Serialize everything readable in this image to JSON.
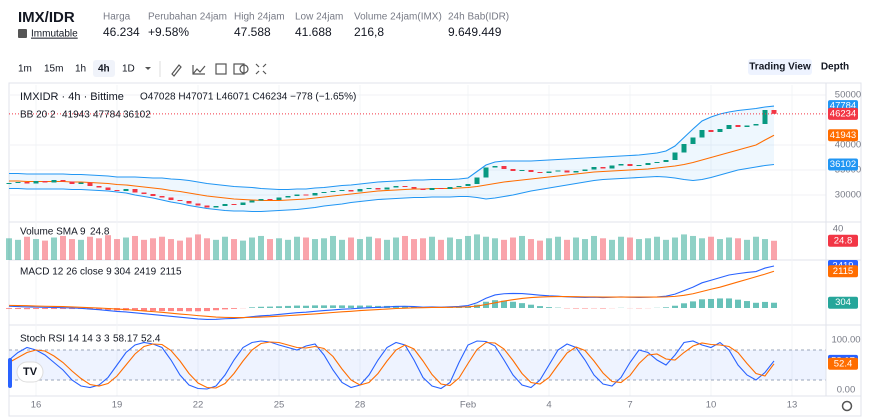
{
  "header": {
    "pair": "IMX/IDR",
    "name": "Immutable",
    "stats": [
      {
        "label": "Harga",
        "value": "46.234"
      },
      {
        "label": "Perubahan 24jam",
        "value": "+9.58%"
      },
      {
        "label": "High 24jam",
        "value": "47.588"
      },
      {
        "label": "Low 24jam",
        "value": "41.688"
      },
      {
        "label": "Volume 24jam(IMX)",
        "value": "216,8"
      },
      {
        "label": "24h Bab(IDR)",
        "value": "9.649.449"
      }
    ]
  },
  "toolbar": {
    "intervals": [
      "1m",
      "15m",
      "1h",
      "4h",
      "1D"
    ],
    "active": "4h",
    "views": [
      "Trading View",
      "Depth"
    ]
  },
  "chart_data": {
    "type": "candlestick",
    "legend": {
      "symbol": "IMXIDR · 4h · Bittime",
      "ohlc": "O47028 H47071 L46071 C46234 −778 (−1.65%)",
      "bb": "BB 20 2",
      "volume": "Volume SMA 9",
      "macd": "MACD 12 26 close 9",
      "rsi": "Stoch RSI 14 14 3 3"
    },
    "up_color": "#089981",
    "down_color": "#f23645",
    "xticks": [
      {
        "value": 3,
        "label": "16"
      },
      {
        "value": 12,
        "label": "19"
      },
      {
        "value": 21,
        "label": "22"
      },
      {
        "value": 30,
        "label": "25"
      },
      {
        "value": 39,
        "label": "28"
      },
      {
        "value": 51,
        "label": "Feb"
      },
      {
        "value": 60,
        "label": "4"
      },
      {
        "value": 69,
        "label": "7"
      },
      {
        "value": 78,
        "label": "10"
      },
      {
        "value": 87,
        "label": "13"
      }
    ],
    "ylim": [
      24600,
      52000
    ],
    "yticks": [
      30000,
      35000,
      40000,
      50000
    ],
    "close": [
      32400,
      32600,
      32300,
      32800,
      32500,
      33000,
      32700,
      32200,
      32500,
      31800,
      31500,
      31000,
      30800,
      31200,
      30500,
      30200,
      29800,
      29500,
      29000,
      28800,
      28300,
      27900,
      27500,
      27800,
      28200,
      28000,
      28500,
      28900,
      29200,
      29000,
      29500,
      29800,
      30100,
      29900,
      30400,
      30600,
      30800,
      31000,
      30700,
      31200,
      31400,
      31100,
      31500,
      31800,
      31600,
      31300,
      31000,
      31400,
      31200,
      31600,
      31800,
      32200,
      33500,
      35500,
      35800,
      35200,
      34800,
      35000,
      34600,
      34400,
      34700,
      34900,
      34500,
      34800,
      35100,
      35600,
      35300,
      35900,
      36200,
      35800,
      36000,
      36400,
      36600,
      37000,
      38500,
      40200,
      41500,
      43000,
      42600,
      43200,
      44000,
      43600,
      43900,
      44200,
      47000,
      46234
    ],
    "bb_mid": [
      32800,
      32800,
      32700,
      32700,
      32700,
      32700,
      32700,
      32600,
      32600,
      32500,
      32400,
      32300,
      32100,
      32000,
      31800,
      31600,
      31400,
      31200,
      30900,
      30700,
      30400,
      30100,
      29800,
      29600,
      29400,
      29200,
      29100,
      29000,
      28900,
      28900,
      28900,
      29000,
      29100,
      29200,
      29400,
      29600,
      29800,
      30000,
      30200,
      30400,
      30600,
      30800,
      30900,
      31000,
      31100,
      31200,
      31200,
      31300,
      31300,
      31300,
      31400,
      31500,
      31700,
      32000,
      32300,
      32600,
      32800,
      33000,
      33200,
      33400,
      33600,
      33800,
      34000,
      34200,
      34400,
      34600,
      34700,
      34800,
      34900,
      35000,
      35100,
      35200,
      35400,
      35600,
      35800,
      36100,
      36500,
      37000,
      37500,
      38000,
      38500,
      39000,
      39500,
      40000,
      41000,
      41943
    ],
    "bb_upper": [
      34300,
      34300,
      34200,
      34200,
      34200,
      34200,
      34200,
      34100,
      34100,
      34000,
      33900,
      33800,
      33600,
      33600,
      33600,
      33500,
      33400,
      33400,
      33200,
      33100,
      32900,
      32600,
      32300,
      32100,
      31900,
      31700,
      31600,
      31500,
      31300,
      31200,
      31100,
      31100,
      31200,
      31200,
      31400,
      31500,
      31700,
      31900,
      32000,
      32200,
      32400,
      32600,
      32700,
      32800,
      32900,
      33000,
      33000,
      33100,
      33100,
      33100,
      33200,
      33400,
      34700,
      36000,
      36600,
      36800,
      36800,
      36800,
      36800,
      36900,
      37000,
      37100,
      37200,
      37300,
      37400,
      37500,
      37600,
      37700,
      37800,
      37900,
      38000,
      38200,
      38400,
      38800,
      39800,
      41500,
      43200,
      44800,
      45600,
      46200,
      46600,
      46900,
      47100,
      47300,
      47600,
      47784
    ],
    "bb_lower": [
      31300,
      31300,
      31200,
      31200,
      31200,
      31200,
      31200,
      31100,
      31100,
      31000,
      30900,
      30800,
      30600,
      30400,
      30000,
      29700,
      29400,
      29000,
      28600,
      28300,
      27900,
      27600,
      27300,
      27100,
      26900,
      26800,
      26800,
      26700,
      26700,
      26800,
      26900,
      27000,
      27100,
      27300,
      27500,
      27800,
      28000,
      28200,
      28500,
      28700,
      28900,
      29100,
      29200,
      29300,
      29400,
      29500,
      29500,
      29600,
      29600,
      29600,
      29700,
      29700,
      29500,
      29200,
      29400,
      29700,
      30000,
      30400,
      30800,
      31100,
      31400,
      31700,
      32000,
      32300,
      32600,
      32900,
      33100,
      33200,
      33300,
      33400,
      33500,
      33600,
      33700,
      33600,
      33400,
      33100,
      32900,
      33100,
      33500,
      34000,
      34500,
      35000,
      35300,
      35600,
      35900,
      36102
    ],
    "vol_ylim": [
      0,
      49
    ],
    "vol_yticks": [
      40
    ],
    "volume": [
      28,
      26,
      30,
      27,
      25,
      29,
      31,
      27,
      26,
      30,
      28,
      32,
      27,
      29,
      31,
      26,
      28,
      30,
      27,
      25,
      29,
      33,
      28,
      26,
      30,
      27,
      25,
      29,
      31,
      27,
      28,
      26,
      30,
      29,
      27,
      28,
      31,
      26,
      29,
      27,
      30,
      28,
      26,
      29,
      31,
      27,
      28,
      30,
      26,
      29,
      27,
      31,
      33,
      30,
      28,
      26,
      29,
      31,
      27,
      25,
      28,
      30,
      26,
      29,
      27,
      31,
      28,
      26,
      30,
      29,
      27,
      28,
      30,
      26,
      29,
      33,
      31,
      28,
      30,
      27,
      29,
      28,
      26,
      30,
      27,
      24.8
    ],
    "macd_ylim": [
      -980,
      2765
    ],
    "macd": [
      100,
      80,
      60,
      50,
      40,
      30,
      20,
      0,
      -20,
      -60,
      -100,
      -150,
      -200,
      -230,
      -280,
      -330,
      -380,
      -430,
      -480,
      -530,
      -580,
      -630,
      -660,
      -650,
      -620,
      -600,
      -560,
      -500,
      -450,
      -420,
      -370,
      -320,
      -270,
      -240,
      -190,
      -150,
      -110,
      -70,
      -50,
      -10,
      20,
      30,
      60,
      90,
      100,
      80,
      50,
      60,
      50,
      70,
      90,
      140,
      300,
      560,
      750,
      820,
      840,
      830,
      790,
      740,
      700,
      680,
      640,
      620,
      610,
      620,
      600,
      620,
      640,
      620,
      610,
      620,
      640,
      680,
      800,
      1000,
      1200,
      1450,
      1600,
      1750,
      1900,
      1980,
      2050,
      2100,
      2300,
      2419
    ],
    "signal": [
      150,
      140,
      130,
      110,
      100,
      90,
      80,
      60,
      40,
      20,
      0,
      -30,
      -60,
      -90,
      -130,
      -170,
      -210,
      -250,
      -300,
      -350,
      -390,
      -440,
      -480,
      -520,
      -540,
      -550,
      -550,
      -540,
      -520,
      -500,
      -470,
      -440,
      -410,
      -370,
      -340,
      -300,
      -260,
      -220,
      -190,
      -150,
      -120,
      -90,
      -60,
      -30,
      -10,
      10,
      20,
      30,
      30,
      40,
      50,
      70,
      110,
      200,
      300,
      400,
      480,
      550,
      600,
      630,
      650,
      660,
      660,
      650,
      640,
      640,
      630,
      630,
      630,
      630,
      630,
      630,
      630,
      640,
      670,
      730,
      820,
      950,
      1080,
      1200,
      1350,
      1500,
      1650,
      1800,
      1950,
      2115
    ],
    "hist": [
      -50,
      -60,
      -70,
      -60,
      -60,
      -60,
      -60,
      -60,
      -60,
      -80,
      -100,
      -120,
      -140,
      -140,
      -150,
      -160,
      -170,
      -180,
      -180,
      -180,
      -190,
      -190,
      -180,
      -130,
      -80,
      -50,
      -10,
      40,
      70,
      80,
      100,
      120,
      140,
      130,
      150,
      150,
      150,
      150,
      140,
      140,
      140,
      120,
      120,
      120,
      110,
      70,
      30,
      30,
      20,
      30,
      40,
      70,
      190,
      360,
      450,
      420,
      360,
      280,
      190,
      110,
      50,
      20,
      -20,
      -30,
      -30,
      -20,
      -30,
      -10,
      10,
      -10,
      -20,
      -10,
      10,
      40,
      130,
      270,
      380,
      500,
      520,
      550,
      550,
      480,
      400,
      300,
      350,
      304
    ],
    "rsi_ylim": [
      -10,
      130
    ],
    "rsi_yticks": [
      {
        "value": 100,
        "label": "100.00"
      },
      {
        "value": 50,
        "label": "50.00"
      },
      {
        "value": 0,
        "label": "0.00"
      }
    ],
    "rsi_band": [
      20,
      80
    ],
    "k": [
      60,
      75,
      85,
      80,
      70,
      55,
      40,
      20,
      8,
      5,
      10,
      25,
      50,
      75,
      90,
      95,
      92,
      85,
      60,
      30,
      10,
      3,
      2,
      8,
      30,
      60,
      85,
      95,
      98,
      96,
      90,
      85,
      80,
      88,
      92,
      70,
      40,
      15,
      5,
      10,
      30,
      60,
      85,
      95,
      90,
      60,
      25,
      8,
      3,
      15,
      55,
      90,
      98,
      97,
      88,
      60,
      30,
      10,
      5,
      20,
      50,
      80,
      92,
      85,
      60,
      30,
      12,
      8,
      25,
      55,
      80,
      75,
      60,
      50,
      70,
      95,
      98,
      90,
      85,
      95,
      80,
      50,
      30,
      20,
      35,
      58.17
    ],
    "d": [
      55,
      65,
      75,
      80,
      78,
      68,
      55,
      38,
      23,
      11,
      8,
      13,
      28,
      50,
      72,
      87,
      92,
      91,
      79,
      58,
      33,
      14,
      5,
      4,
      13,
      33,
      58,
      80,
      93,
      96,
      95,
      90,
      85,
      84,
      87,
      83,
      67,
      42,
      20,
      10,
      15,
      33,
      58,
      80,
      90,
      82,
      58,
      31,
      12,
      9,
      24,
      53,
      81,
      95,
      94,
      82,
      59,
      33,
      15,
      12,
      25,
      50,
      74,
      86,
      79,
      58,
      34,
      17,
      15,
      29,
      53,
      70,
      72,
      62,
      60,
      75,
      88,
      94,
      91,
      90,
      87,
      75,
      53,
      33,
      28,
      52.4
    ]
  }
}
